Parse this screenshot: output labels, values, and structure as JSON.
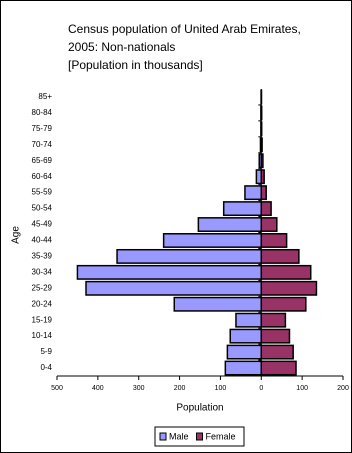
{
  "chart_data": {
    "type": "pyramid",
    "title": [
      "Census population of United Arab Emirates,",
      "2005:  Non-nationals",
      "[Population in thousands]"
    ],
    "x_label": "Population",
    "y_label": "Age",
    "categories": [
      "0-4",
      "5-9",
      "10-14",
      "15-19",
      "20-24",
      "25-29",
      "30-34",
      "35-39",
      "40-44",
      "45-49",
      "50-54",
      "55-59",
      "60-64",
      "65-69",
      "70-74",
      "75-79",
      "80-84",
      "85+"
    ],
    "series": [
      {
        "name": "Male",
        "color": "#9999ff",
        "values": [
          -88,
          -83,
          -76,
          -62,
          -213,
          -429,
          -450,
          -353,
          -239,
          -154,
          -92,
          -40,
          -12,
          -5,
          -2,
          -1,
          -1,
          -0.5
        ]
      },
      {
        "name": "Female",
        "color": "#993366",
        "values": [
          85,
          78,
          69,
          59,
          109,
          135,
          121,
          92,
          62,
          38,
          24,
          12,
          7,
          4,
          2,
          1,
          1,
          0.5
        ]
      }
    ],
    "xlim": [
      -500,
      200
    ],
    "xticks": [
      {
        "value": -500,
        "label": "500"
      },
      {
        "value": -400,
        "label": "400"
      },
      {
        "value": -300,
        "label": "300"
      },
      {
        "value": -200,
        "label": "200"
      },
      {
        "value": -100,
        "label": "100"
      },
      0,
      100,
      200
    ],
    "legend": "bottom"
  }
}
